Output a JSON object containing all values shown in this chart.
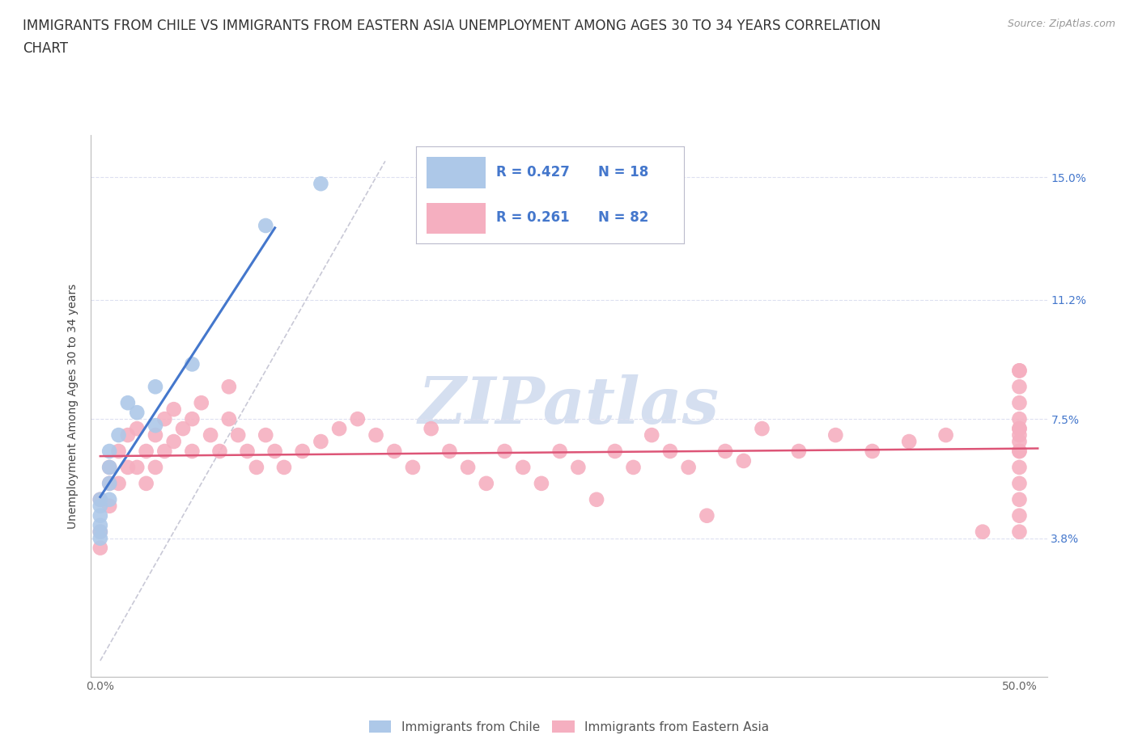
{
  "title_line1": "IMMIGRANTS FROM CHILE VS IMMIGRANTS FROM EASTERN ASIA UNEMPLOYMENT AMONG AGES 30 TO 34 YEARS CORRELATION",
  "title_line2": "CHART",
  "source_text": "Source: ZipAtlas.com",
  "ylabel": "Unemployment Among Ages 30 to 34 years",
  "x_tick_positions": [
    0.0,
    0.05,
    0.1,
    0.15,
    0.2,
    0.25,
    0.3,
    0.35,
    0.4,
    0.45,
    0.5
  ],
  "x_tick_labels_show": [
    "0.0%",
    "",
    "",
    "",
    "",
    "",
    "",
    "",
    "",
    "",
    "50.0%"
  ],
  "y_tick_labels": [
    "3.8%",
    "7.5%",
    "11.2%",
    "15.0%"
  ],
  "y_ticks": [
    0.038,
    0.075,
    0.112,
    0.15
  ],
  "xlim": [
    -0.005,
    0.515
  ],
  "ylim": [
    -0.005,
    0.163
  ],
  "legend_labels": [
    "Immigrants from Chile",
    "Immigrants from Eastern Asia"
  ],
  "R_chile": 0.427,
  "N_chile": 18,
  "R_east_asia": 0.261,
  "N_east_asia": 82,
  "color_chile": "#adc8e8",
  "color_east_asia": "#f5afc0",
  "line_color_chile": "#4477cc",
  "line_color_east_asia": "#dd5577",
  "dashed_line_color": "#bbbbcc",
  "background_color": "#ffffff",
  "grid_color": "#dde0f0",
  "watermark_color": "#d5dff0",
  "right_label_color": "#4477cc",
  "chile_x": [
    0.0,
    0.0,
    0.0,
    0.0,
    0.0,
    0.0,
    0.005,
    0.005,
    0.005,
    0.005,
    0.01,
    0.015,
    0.02,
    0.03,
    0.03,
    0.05,
    0.09,
    0.12
  ],
  "chile_y": [
    0.05,
    0.048,
    0.045,
    0.042,
    0.04,
    0.038,
    0.065,
    0.06,
    0.055,
    0.05,
    0.07,
    0.08,
    0.077,
    0.085,
    0.073,
    0.092,
    0.135,
    0.148
  ],
  "east_asia_x": [
    0.0,
    0.0,
    0.0,
    0.005,
    0.005,
    0.005,
    0.01,
    0.01,
    0.015,
    0.015,
    0.02,
    0.02,
    0.025,
    0.025,
    0.03,
    0.03,
    0.035,
    0.035,
    0.04,
    0.04,
    0.045,
    0.05,
    0.05,
    0.055,
    0.06,
    0.065,
    0.07,
    0.07,
    0.075,
    0.08,
    0.085,
    0.09,
    0.095,
    0.1,
    0.11,
    0.12,
    0.13,
    0.14,
    0.15,
    0.16,
    0.17,
    0.18,
    0.19,
    0.2,
    0.21,
    0.22,
    0.23,
    0.24,
    0.25,
    0.26,
    0.27,
    0.28,
    0.29,
    0.3,
    0.31,
    0.32,
    0.33,
    0.34,
    0.35,
    0.36,
    0.38,
    0.4,
    0.42,
    0.44,
    0.46,
    0.48,
    0.5,
    0.5,
    0.5,
    0.5,
    0.5,
    0.5,
    0.5,
    0.5,
    0.5,
    0.5,
    0.5,
    0.5,
    0.5,
    0.5,
    0.5,
    0.5
  ],
  "east_asia_y": [
    0.05,
    0.04,
    0.035,
    0.06,
    0.055,
    0.048,
    0.065,
    0.055,
    0.07,
    0.06,
    0.072,
    0.06,
    0.065,
    0.055,
    0.07,
    0.06,
    0.075,
    0.065,
    0.078,
    0.068,
    0.072,
    0.075,
    0.065,
    0.08,
    0.07,
    0.065,
    0.085,
    0.075,
    0.07,
    0.065,
    0.06,
    0.07,
    0.065,
    0.06,
    0.065,
    0.068,
    0.072,
    0.075,
    0.07,
    0.065,
    0.06,
    0.072,
    0.065,
    0.06,
    0.055,
    0.065,
    0.06,
    0.055,
    0.065,
    0.06,
    0.05,
    0.065,
    0.06,
    0.07,
    0.065,
    0.06,
    0.045,
    0.065,
    0.062,
    0.072,
    0.065,
    0.07,
    0.065,
    0.068,
    0.07,
    0.04,
    0.09,
    0.085,
    0.08,
    0.075,
    0.07,
    0.065,
    0.06,
    0.055,
    0.05,
    0.045,
    0.04,
    0.072,
    0.068,
    0.065,
    0.072,
    0.09
  ]
}
